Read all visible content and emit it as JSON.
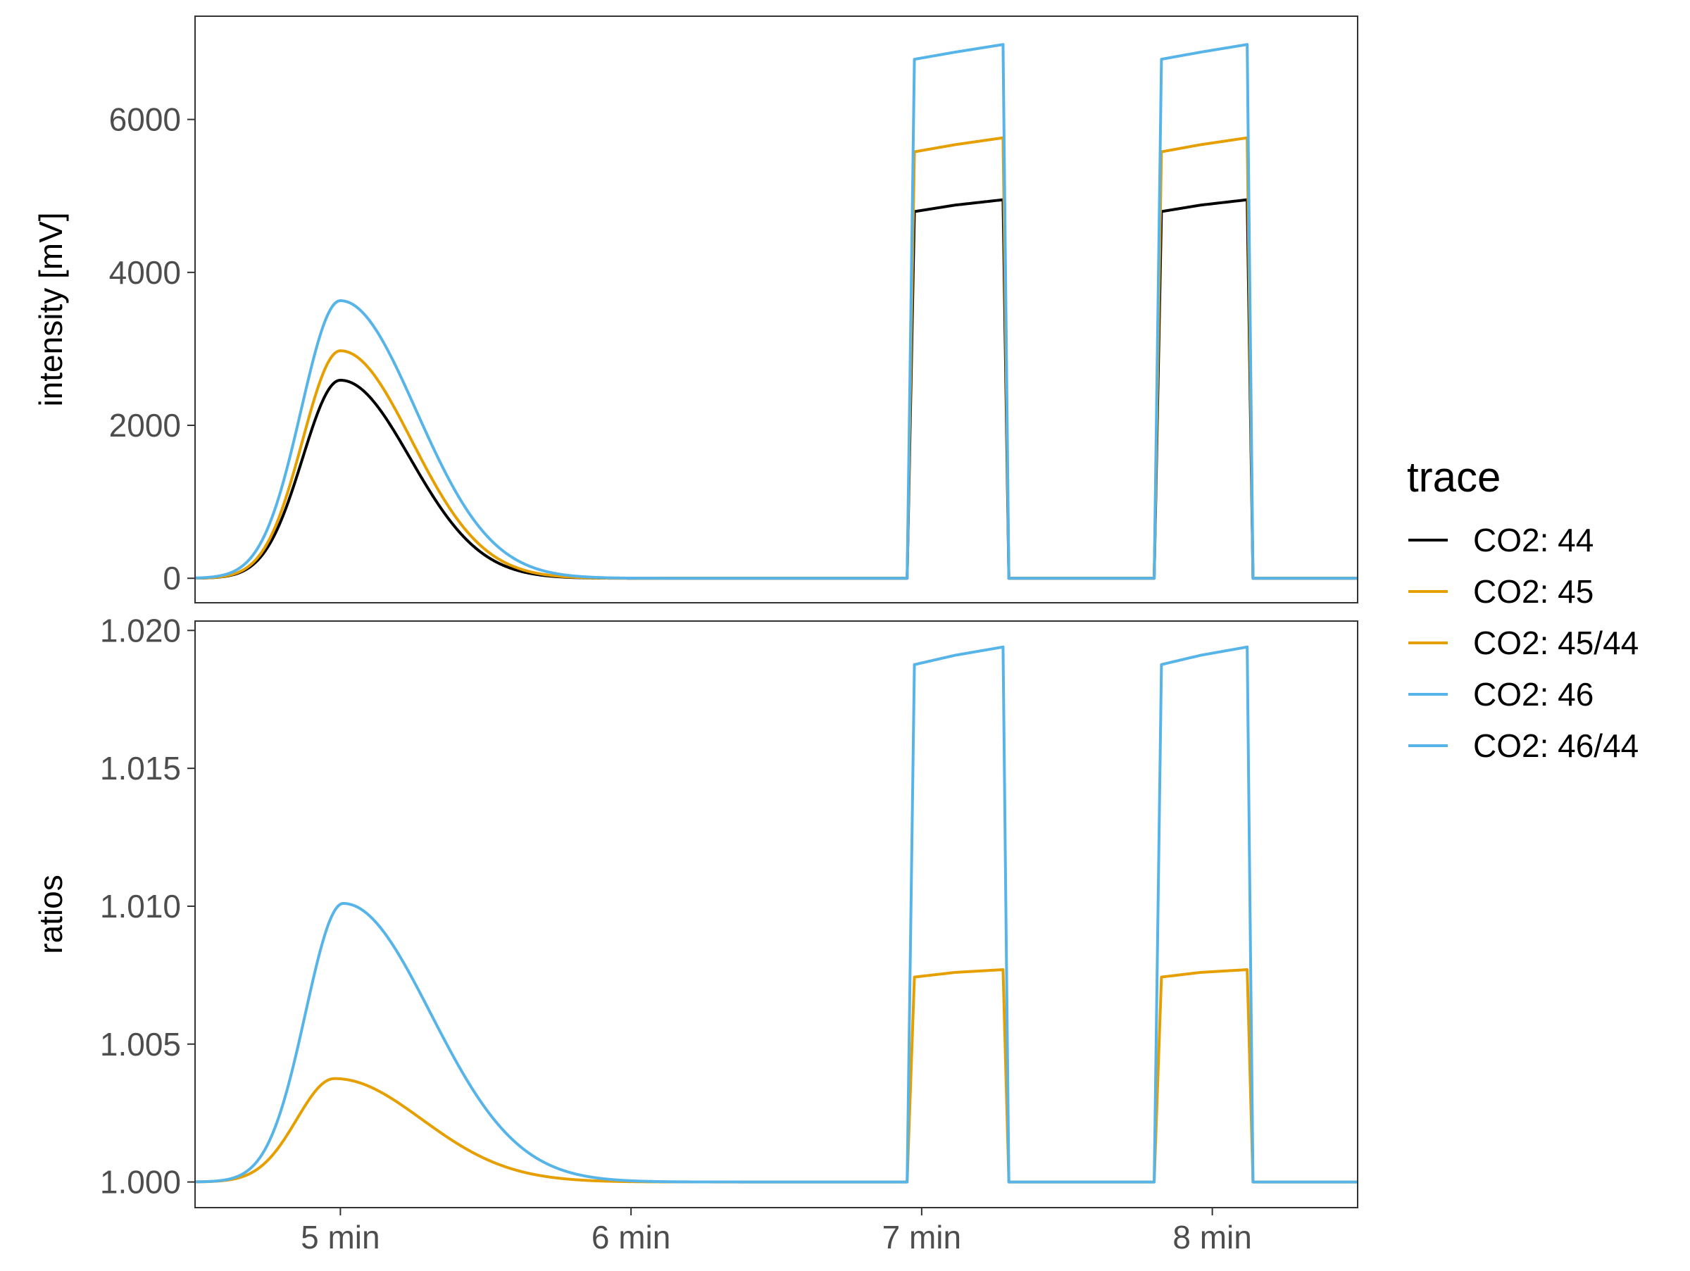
{
  "chart_data": {
    "type": "line",
    "x_unit": "min",
    "x_ticks": [
      5,
      6,
      7,
      8
    ],
    "x_tick_labels": [
      "5 min",
      "6 min",
      "7 min",
      "8 min"
    ],
    "xlim": [
      4.5,
      8.5
    ],
    "panels": [
      {
        "ylabel": "intensity [mV]",
        "ylim": [
          -320,
          7350
        ],
        "y_ticks": [
          0,
          2000,
          4000,
          6000
        ],
        "y_tick_labels": [
          "0",
          "2000",
          "4000",
          "6000"
        ],
        "series": [
          {
            "name": "CO2: 44",
            "color": "#000000",
            "peak": {
              "center": 5.0,
              "amplitude": 2590,
              "sigma_left": 0.13,
              "sigma_right": 0.24
            },
            "refs": [
              {
                "start": 6.95,
                "end": 7.28,
                "values": [
                  4780,
                  4880,
                  4950
                ]
              },
              {
                "start": 7.8,
                "end": 8.12,
                "values": [
                  4780,
                  4880,
                  4950
                ]
              }
            ]
          },
          {
            "name": "CO2: 45",
            "color": "#E69F00",
            "peak": {
              "center": 5.0,
              "amplitude": 2975,
              "sigma_left": 0.13,
              "sigma_right": 0.245
            },
            "refs": [
              {
                "start": 6.95,
                "end": 7.28,
                "values": [
                  5560,
                  5670,
                  5760
                ]
              },
              {
                "start": 7.8,
                "end": 8.12,
                "values": [
                  5560,
                  5670,
                  5760
                ]
              }
            ]
          },
          {
            "name": "CO2: 46",
            "color": "#56B4E9",
            "peak": {
              "center": 5.0,
              "amplitude": 3630,
              "sigma_left": 0.135,
              "sigma_right": 0.26
            },
            "refs": [
              {
                "start": 6.95,
                "end": 7.28,
                "values": [
                  6770,
                  6880,
                  6980
                ]
              },
              {
                "start": 7.8,
                "end": 8.12,
                "values": [
                  6770,
                  6880,
                  6980
                ]
              }
            ]
          }
        ]
      },
      {
        "ylabel": "ratios",
        "ylim": [
          0.99907,
          1.02034
        ],
        "y_ticks": [
          1.0,
          1.005,
          1.01,
          1.015,
          1.02
        ],
        "y_tick_labels": [
          "1.000",
          "1.005",
          "1.010",
          "1.015",
          "1.020"
        ],
        "series": [
          {
            "name": "CO2: 45/44",
            "color": "#E69F00",
            "peak": {
              "center": 4.98,
              "amplitude": 0.00375,
              "sigma_left": 0.13,
              "sigma_right": 0.3,
              "baseline": 1.0
            },
            "refs": [
              {
                "start": 6.95,
                "end": 7.28,
                "values": [
                  1.0074,
                  1.0076,
                  1.0077
                ]
              },
              {
                "start": 7.8,
                "end": 8.12,
                "values": [
                  1.0074,
                  1.0076,
                  1.0077
                ]
              }
            ]
          },
          {
            "name": "CO2: 46/44",
            "color": "#56B4E9",
            "peak": {
              "center": 5.01,
              "amplitude": 0.0101,
              "sigma_left": 0.13,
              "sigma_right": 0.3,
              "baseline": 1.0
            },
            "refs": [
              {
                "start": 6.95,
                "end": 7.28,
                "values": [
                  1.0187,
                  1.0191,
                  1.0194
                ]
              },
              {
                "start": 7.8,
                "end": 8.12,
                "values": [
                  1.0187,
                  1.0191,
                  1.0194
                ]
              }
            ]
          }
        ]
      }
    ],
    "legend": {
      "title": "trace",
      "position": "right",
      "entries": [
        {
          "label": "CO2: 44",
          "color": "#000000"
        },
        {
          "label": "CO2: 45",
          "color": "#E69F00"
        },
        {
          "label": "CO2: 45/44",
          "color": "#E69F00"
        },
        {
          "label": "CO2: 46",
          "color": "#56B4E9"
        },
        {
          "label": "CO2: 46/44",
          "color": "#56B4E9"
        }
      ]
    },
    "grid": false
  }
}
